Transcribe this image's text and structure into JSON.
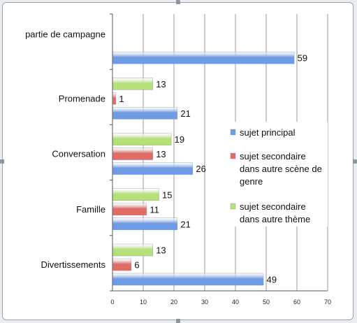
{
  "chart_data": {
    "type": "bar",
    "orientation": "horizontal",
    "categories": [
      "partie de campagne",
      "Promenade",
      "Conversation",
      "Famille",
      "Divertissements"
    ],
    "series": [
      {
        "name": "sujet principal",
        "values": [
          59,
          21,
          26,
          21,
          49
        ],
        "color": "#6f9ae6"
      },
      {
        "name": "sujet secondaire dans autre scène de genre",
        "values": [
          null,
          1,
          13,
          11,
          6
        ],
        "color": "#e06c66"
      },
      {
        "name": "sujet secondaire dans autre thème",
        "values": [
          null,
          13,
          19,
          15,
          13
        ],
        "color": "#b6e07a"
      }
    ],
    "legend_lines": [
      [
        "sujet principal"
      ],
      [
        "sujet secondaire",
        "dans autre scène de",
        "genre"
      ],
      [
        "sujet secondaire",
        "dans autre thème"
      ]
    ],
    "xlim": [
      0,
      70
    ],
    "xticks": [
      0,
      10,
      20,
      30,
      40,
      50,
      60,
      70
    ],
    "grid": true,
    "legend_position": "right"
  }
}
